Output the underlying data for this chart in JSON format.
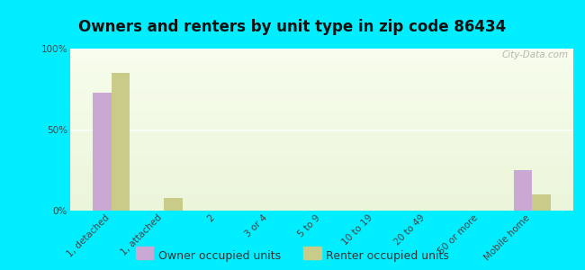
{
  "title": "Owners and renters by unit type in zip code 86434",
  "categories": [
    "1, detached",
    "1, attached",
    "2",
    "3 or 4",
    "5 to 9",
    "10 to 19",
    "20 to 49",
    "50 or more",
    "Mobile home"
  ],
  "owner_values": [
    73,
    0,
    0,
    0,
    0,
    0,
    0,
    0,
    25
  ],
  "renter_values": [
    85,
    8,
    0,
    0,
    0,
    0,
    0,
    0,
    10
  ],
  "owner_color": "#c9a8d4",
  "renter_color": "#c8cc88",
  "background_color": "#00eeff",
  "ylabel_ticks": [
    0,
    50,
    100
  ],
  "ylabel_labels": [
    "0%",
    "50%",
    "100%"
  ],
  "ylim": [
    0,
    100
  ],
  "bar_width": 0.35,
  "title_fontsize": 12,
  "tick_fontsize": 7.5,
  "legend_fontsize": 9,
  "watermark": "City-Data.com"
}
